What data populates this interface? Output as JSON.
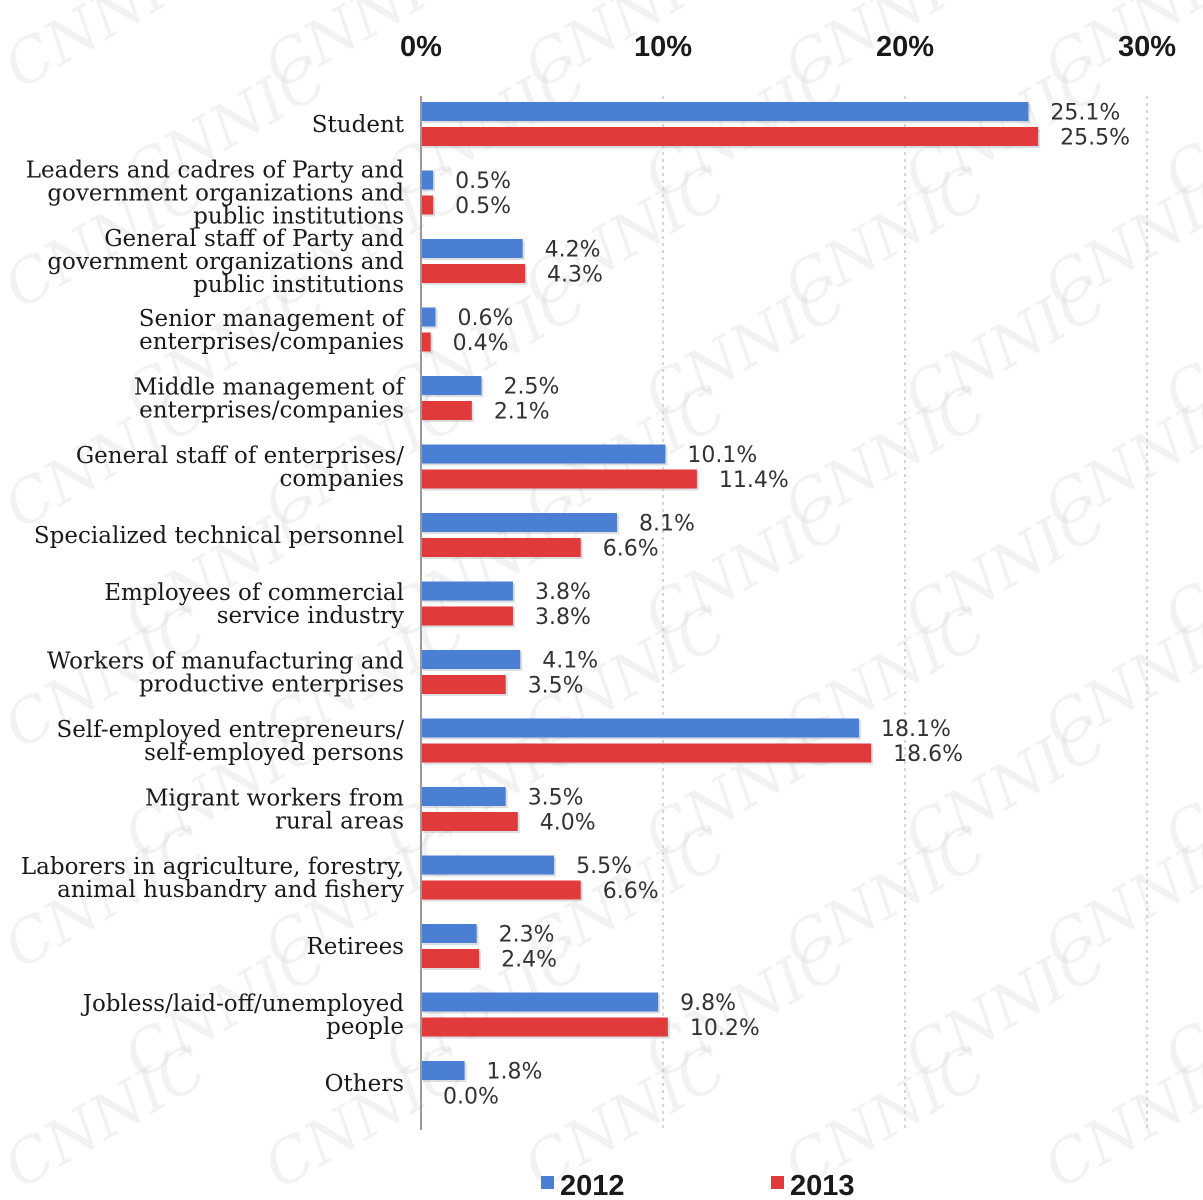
{
  "chart_data": {
    "type": "bar",
    "orientation": "horizontal",
    "xlim": [
      0,
      30
    ],
    "ticks": [
      "0%",
      "10%",
      "20%",
      "30%"
    ],
    "tick_values": [
      0,
      10,
      20,
      30
    ],
    "grid": true,
    "legend_position": "bottom",
    "categories": [
      "Student",
      "Leaders and cadres of Party and government organizations and public institutions",
      "General staff of Party and government organizations and public institutions",
      "Senior management of enterprises/companies",
      "Middle management of enterprises/companies",
      "General staff of enterprises/ companies",
      "Specialized technical personnel",
      "Employees of commercial service industry",
      "Workers of manufacturing and productive enterprises",
      "Self-employed entrepreneurs/ self-employed persons",
      "Migrant workers from rural areas",
      "Laborers in agriculture, forestry, animal husbandry and fishery",
      "Retirees",
      "Jobless/laid-off/unemployed people",
      "Others"
    ],
    "category_lines": [
      [
        "Student"
      ],
      [
        "Leaders and cadres of Party and",
        "government organizations and",
        "public institutions"
      ],
      [
        "General staff of Party and",
        "government organizations and",
        "public institutions"
      ],
      [
        "Senior management of",
        "enterprises/companies"
      ],
      [
        "Middle management of",
        "enterprises/companies"
      ],
      [
        "General staff of enterprises/",
        "companies"
      ],
      [
        "Specialized technical personnel"
      ],
      [
        "Employees of commercial",
        "service industry"
      ],
      [
        "Workers of manufacturing and",
        "productive enterprises"
      ],
      [
        "Self-employed entrepreneurs/",
        "self-employed persons"
      ],
      [
        "Migrant workers from",
        "rural areas"
      ],
      [
        "Laborers in agriculture, forestry,",
        "animal husbandry and fishery"
      ],
      [
        "Retirees"
      ],
      [
        "Jobless/laid-off/unemployed",
        "people"
      ],
      [
        "Others"
      ]
    ],
    "series": [
      {
        "name": "2012",
        "color": "#4a7fd4",
        "values": [
          25.1,
          0.5,
          4.2,
          0.6,
          2.5,
          10.1,
          8.1,
          3.8,
          4.1,
          18.1,
          3.5,
          5.5,
          2.3,
          9.8,
          1.8
        ],
        "labels": [
          "25.1%",
          "0.5%",
          "4.2%",
          "0.6%",
          "2.5%",
          "10.1%",
          "8.1%",
          "3.8%",
          "4.1%",
          "18.1%",
          "3.5%",
          "5.5%",
          "2.3%",
          "9.8%",
          "1.8%"
        ]
      },
      {
        "name": "2013",
        "color": "#e03a3a",
        "values": [
          25.5,
          0.5,
          4.3,
          0.4,
          2.1,
          11.4,
          6.6,
          3.8,
          3.5,
          18.6,
          4.0,
          6.6,
          2.4,
          10.2,
          0.0
        ],
        "labels": [
          "25.5%",
          "0.5%",
          "4.3%",
          "0.4%",
          "2.1%",
          "11.4%",
          "6.6%",
          "3.8%",
          "3.5%",
          "18.6%",
          "4.0%",
          "6.6%",
          "2.4%",
          "10.2%",
          "0.0%"
        ]
      }
    ],
    "watermark": "CNNIC"
  }
}
